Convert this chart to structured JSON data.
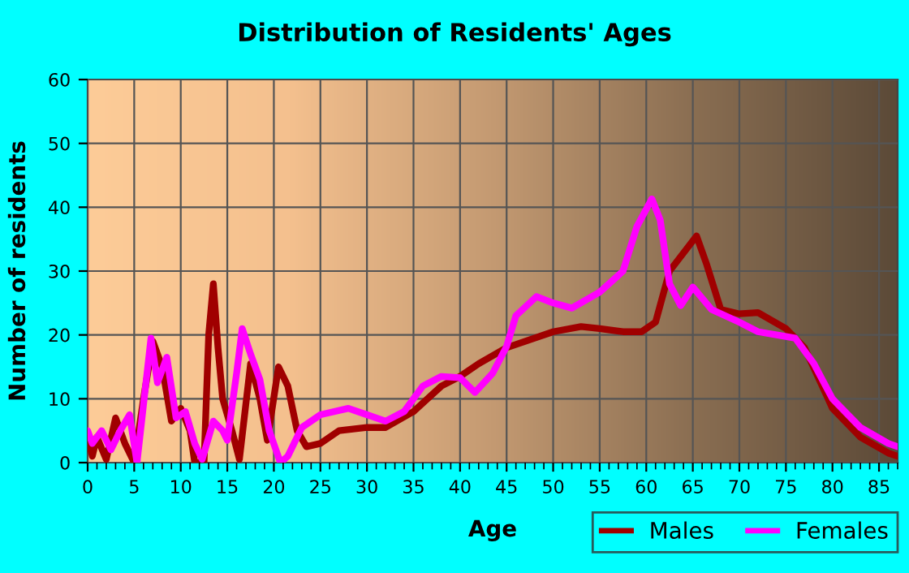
{
  "chart_data": {
    "type": "line",
    "title": "Distribution of Residents' Ages",
    "xlabel": "Age",
    "ylabel": "Number of residents",
    "series": [
      {
        "name": "Males",
        "color": "#a00000",
        "x": [
          0,
          0.5,
          1,
          2,
          3,
          4,
          5,
          6,
          7,
          8,
          9,
          10,
          11,
          11.5,
          12.5,
          13,
          13.5,
          14,
          14.5,
          15.5,
          16.3,
          17.5,
          18.5,
          19.3,
          20.5,
          21.5,
          22.5,
          23.5,
          25,
          27,
          30,
          32,
          35,
          38,
          40,
          42,
          45,
          50,
          53,
          55,
          57.5,
          59.5,
          61,
          62.5,
          65.4,
          66.5,
          68,
          70,
          72,
          75,
          77,
          80,
          83,
          86,
          87
        ],
        "values": [
          4,
          1,
          4,
          0.5,
          7,
          3,
          0,
          10,
          19,
          15,
          6.5,
          8.5,
          5,
          0,
          0,
          20,
          28,
          18,
          10,
          5,
          0.5,
          15.5,
          10,
          3.5,
          15,
          12,
          5,
          2.5,
          3,
          5,
          5.5,
          5.5,
          8,
          12,
          13.5,
          15.5,
          18,
          20.5,
          21.3,
          21,
          20.5,
          20.5,
          22,
          30,
          35.5,
          31,
          24,
          23.3,
          23.5,
          21,
          18,
          8.5,
          4,
          1.5,
          1
        ]
      },
      {
        "name": "Females",
        "color": "#ff00ff",
        "x": [
          0,
          0.5,
          1.5,
          2.5,
          3.5,
          4.5,
          5.3,
          6.8,
          7.5,
          8.5,
          9.5,
          10.5,
          11.5,
          12.3,
          13.5,
          14.5,
          15,
          16,
          16.6,
          17.5,
          18.5,
          19.5,
          20.7,
          21.5,
          23,
          25,
          28,
          30,
          32,
          34,
          36,
          38,
          40,
          41.6,
          43.5,
          45,
          46,
          48.2,
          50,
          52,
          55,
          57.5,
          59,
          60.6,
          61.5,
          62.5,
          63.7,
          65,
          67,
          70,
          72,
          74,
          76,
          78,
          80,
          83,
          86,
          87
        ],
        "values": [
          5,
          3,
          5,
          2,
          5,
          7.5,
          0,
          19.5,
          12.5,
          16.5,
          7,
          8,
          3,
          0.5,
          6.5,
          5,
          3.5,
          14,
          21,
          17,
          13,
          5,
          0,
          1,
          5.5,
          7.5,
          8.5,
          7.5,
          6.5,
          8,
          12,
          13.5,
          13.3,
          11,
          14,
          18.2,
          23,
          26,
          25,
          24.2,
          26.7,
          30,
          37,
          41.3,
          38,
          28,
          24.6,
          27.5,
          24,
          22,
          20.5,
          20,
          19.5,
          15.5,
          10,
          5.5,
          3,
          2.5
        ]
      }
    ],
    "xlim": [
      0,
      87
    ],
    "ylim": [
      0,
      60
    ],
    "xticks": [
      0,
      5,
      10,
      15,
      20,
      25,
      30,
      35,
      40,
      45,
      50,
      55,
      60,
      65,
      70,
      75,
      80,
      85
    ],
    "yticks": [
      0,
      10,
      20,
      30,
      40,
      50,
      60
    ],
    "grid": true,
    "legend": "bottom right",
    "marker": "none",
    "line_style": "solid"
  }
}
